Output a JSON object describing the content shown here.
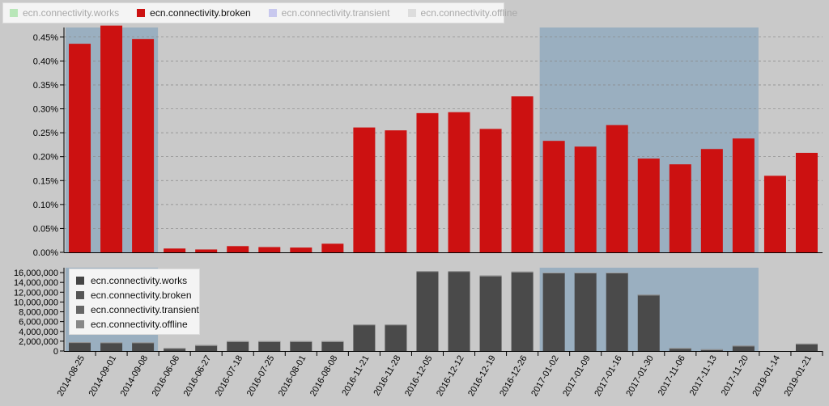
{
  "legend_top": [
    {
      "label": "ecn.connectivity.works",
      "color": "#b8e6b8",
      "active": false
    },
    {
      "label": "ecn.connectivity.broken",
      "color": "#cc1111",
      "active": true
    },
    {
      "label": "ecn.connectivity.transient",
      "color": "#c8c8ee",
      "active": false
    },
    {
      "label": "ecn.connectivity.offline",
      "color": "#dddddd",
      "active": false
    }
  ],
  "legend_bottom": [
    {
      "label": "ecn.connectivity.works",
      "color": "#444444"
    },
    {
      "label": "ecn.connectivity.broken",
      "color": "#555555"
    },
    {
      "label": "ecn.connectivity.transient",
      "color": "#666666"
    },
    {
      "label": "ecn.connectivity.offline",
      "color": "#888888"
    }
  ],
  "colors": {
    "broken": "#cc1111",
    "count": "#4a4a4a",
    "highlight": "#9aafc0"
  },
  "chart_data": [
    {
      "type": "bar",
      "series": [
        {
          "name": "ecn.connectivity.broken",
          "values": [
            0.436,
            0.474,
            0.446,
            0.008,
            0.006,
            0.013,
            0.011,
            0.01,
            0.018,
            0.261,
            0.255,
            0.291,
            0.293,
            0.258,
            0.326,
            0.233,
            0.221,
            0.266,
            0.196,
            0.184,
            0.216,
            0.238,
            0.16,
            0.208
          ]
        }
      ],
      "ylim": [
        0,
        0.47
      ],
      "yticks": [
        "0.00%",
        "0.05%",
        "0.10%",
        "0.15%",
        "0.20%",
        "0.25%",
        "0.30%",
        "0.35%",
        "0.40%",
        "0.45%"
      ],
      "grid": true,
      "highlight_ranges": [
        [
          "2014-08-25",
          "2014-09-08"
        ],
        [
          "2017-01-02",
          "2017-11-20"
        ]
      ]
    },
    {
      "type": "bar",
      "categories": [
        "2014-08-25",
        "2014-09-01",
        "2014-09-08",
        "2016-06-06",
        "2016-06-27",
        "2016-07-18",
        "2016-07-25",
        "2016-08-01",
        "2016-08-08",
        "2016-11-21",
        "2016-11-28",
        "2016-12-05",
        "2016-12-12",
        "2016-12-19",
        "2016-12-26",
        "2017-01-02",
        "2017-01-09",
        "2017-01-16",
        "2017-01-30",
        "2017-11-06",
        "2017-11-13",
        "2017-11-20",
        "2019-01-14",
        "2019-01-21"
      ],
      "series": [
        {
          "name": "ecn.connectivity.works",
          "values": [
            1800000,
            1750000,
            1750000,
            600000,
            1200000,
            2000000,
            2000000,
            2000000,
            2000000,
            5400000,
            5400000,
            16300000,
            16300000,
            15400000,
            16200000,
            16000000,
            16000000,
            16000000,
            11500000,
            600000,
            350000,
            1100000,
            0,
            1500000
          ]
        }
      ],
      "ylim": [
        0,
        17000000
      ],
      "yticks": [
        "0",
        "2,000,000",
        "4,000,000",
        "6,000,000",
        "8,000,000",
        "10,000,000",
        "12,000,000",
        "14,000,000",
        "16,000,000"
      ],
      "highlight_ranges": [
        [
          "2014-08-25",
          "2014-09-08"
        ],
        [
          "2017-01-02",
          "2017-11-20"
        ]
      ]
    }
  ]
}
